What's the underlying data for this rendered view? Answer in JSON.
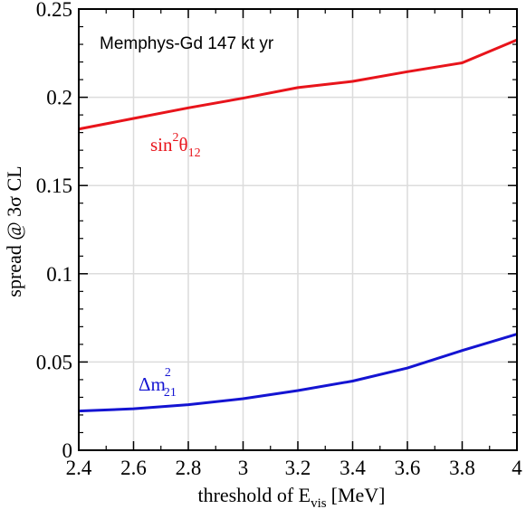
{
  "chart_data": {
    "type": "line",
    "annotation": "Memphys-Gd 147 kt yr",
    "xlabel": {
      "main": "threshold of E",
      "sub": "vis",
      "unit": "[MeV]"
    },
    "ylabel": "spread @ 3σ CL",
    "xlim": [
      2.4,
      4.0
    ],
    "ylim": [
      0,
      0.25
    ],
    "grid": true,
    "x_ticks": [
      2.4,
      2.6,
      2.8,
      3.0,
      3.2,
      3.4,
      3.6,
      3.8,
      4.0
    ],
    "x_tick_labels": [
      "2.4",
      "2.6",
      "2.8",
      "3",
      "3.2",
      "3.4",
      "3.6",
      "3.8",
      "4"
    ],
    "y_ticks": [
      0,
      0.05,
      0.1,
      0.15,
      0.2,
      0.25
    ],
    "y_tick_labels": [
      "0",
      "0.05",
      "0.1",
      "0.15",
      "0.2",
      "0.25"
    ],
    "series": [
      {
        "color": "#e8141b",
        "label": {
          "base": "sin",
          "sup": "2",
          "main": "θ",
          "sub": "12"
        },
        "x": [
          2.4,
          2.6,
          2.8,
          3.0,
          3.2,
          3.4,
          3.6,
          3.8,
          4.0
        ],
        "values": [
          0.182,
          0.188,
          0.194,
          0.1995,
          0.2055,
          0.209,
          0.2145,
          0.2195,
          0.2325
        ]
      },
      {
        "color": "#1414d2",
        "label": {
          "base": "Δm",
          "sup": "2",
          "sub": "21"
        },
        "x": [
          2.4,
          2.6,
          2.8,
          3.0,
          3.2,
          3.4,
          3.6,
          3.8,
          4.0
        ],
        "values": [
          0.0222,
          0.0235,
          0.0258,
          0.0292,
          0.0338,
          0.0392,
          0.0466,
          0.0565,
          0.0658
        ]
      }
    ]
  }
}
